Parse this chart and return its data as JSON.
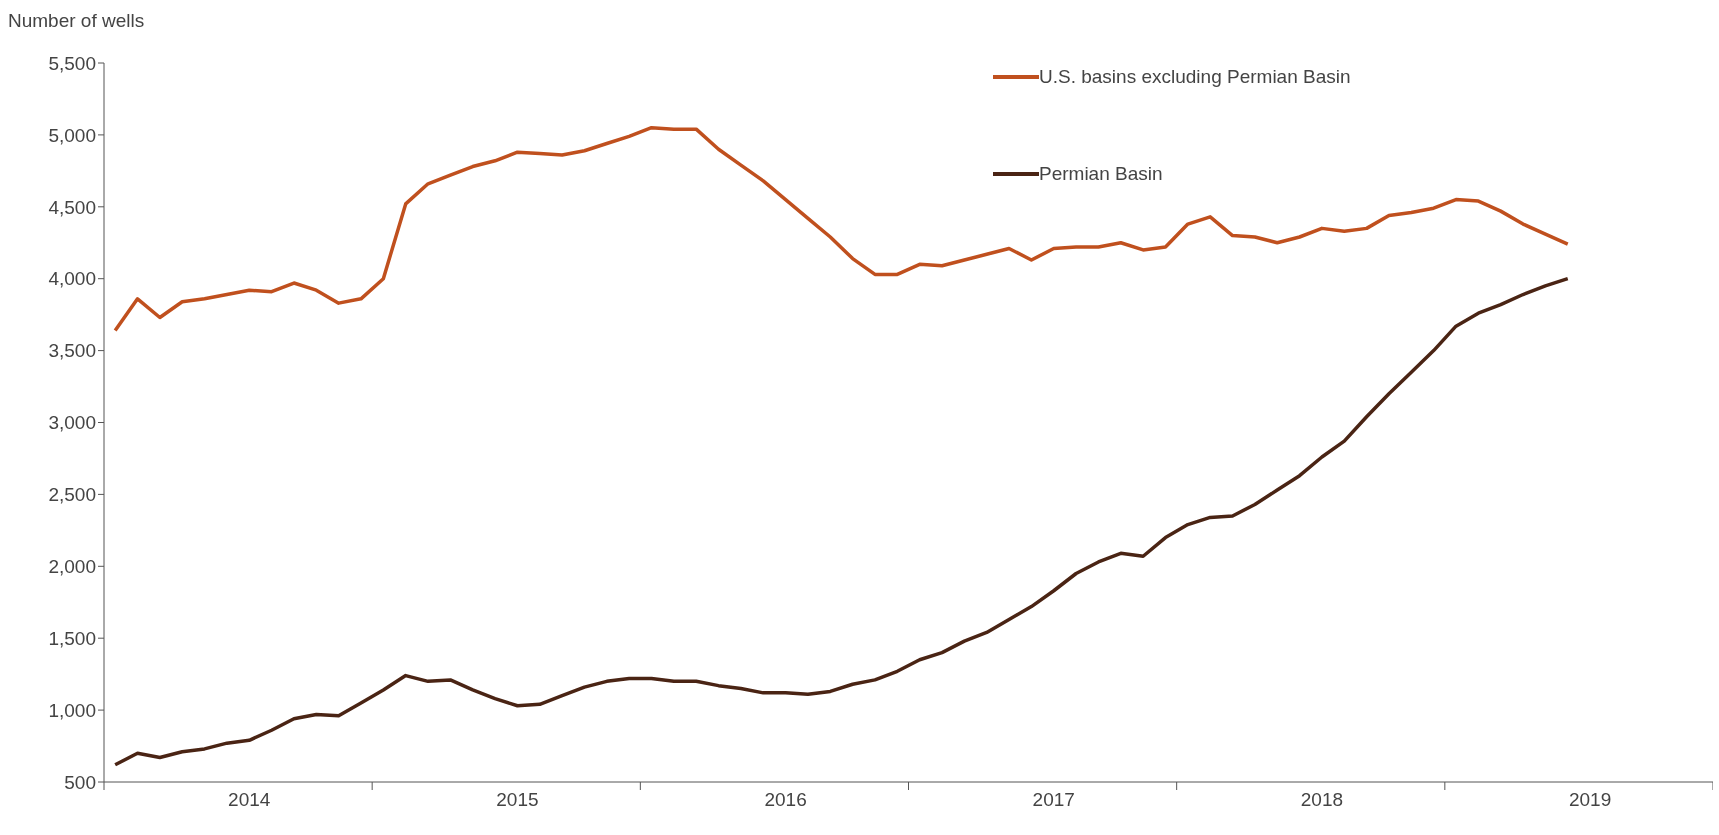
{
  "chart_data": {
    "type": "line",
    "ylabel": "Number of wells",
    "categories": [
      null,
      null,
      null,
      null,
      null,
      null,
      "2014",
      null,
      null,
      null,
      null,
      null,
      null,
      null,
      null,
      null,
      null,
      null,
      "2015",
      null,
      null,
      null,
      null,
      null,
      null,
      null,
      null,
      null,
      null,
      null,
      "2016",
      null,
      null,
      null,
      null,
      null,
      null,
      null,
      null,
      null,
      null,
      null,
      "2017",
      null,
      null,
      null,
      null,
      null,
      null,
      null,
      null,
      null,
      null,
      null,
      "2018",
      null,
      null,
      null,
      null,
      null,
      null,
      null,
      null,
      null,
      null,
      null,
      "2019",
      null,
      null,
      null,
      null,
      null
    ],
    "series": [
      {
        "name": "U.S. basins excluding Permian Basin",
        "color": "#c0501e",
        "values": [
          3640,
          3860,
          3730,
          3840,
          3860,
          3890,
          3920,
          3910,
          3970,
          3920,
          3830,
          3860,
          4000,
          4520,
          4660,
          4720,
          4780,
          4820,
          4880,
          4870,
          4860,
          4890,
          4940,
          4990,
          5050,
          5040,
          5040,
          4900,
          4790,
          4680,
          4550,
          4420,
          4290,
          4140,
          4030,
          4030,
          4100,
          4090,
          4130,
          4170,
          4210,
          4130,
          4210,
          4220,
          4220,
          4250,
          4200,
          4220,
          4380,
          4430,
          4300,
          4290,
          4250,
          4290,
          4350,
          4330,
          4350,
          4440,
          4460,
          4490,
          4550,
          4540,
          4470,
          4380,
          4310,
          4240,
          null,
          null,
          null,
          null,
          null,
          null
        ]
      },
      {
        "name": "Permian Basin",
        "color": "#4a2414",
        "values": [
          620,
          700,
          670,
          710,
          730,
          770,
          790,
          860,
          940,
          970,
          960,
          1050,
          1140,
          1240,
          1200,
          1210,
          1140,
          1080,
          1030,
          1040,
          1100,
          1160,
          1200,
          1220,
          1220,
          1200,
          1200,
          1170,
          1150,
          1120,
          1120,
          1110,
          1130,
          1180,
          1210,
          1270,
          1350,
          1400,
          1480,
          1540,
          1630,
          1720,
          1830,
          1950,
          2030,
          2090,
          2070,
          2200,
          2290,
          2340,
          2350,
          2430,
          2530,
          2630,
          2760,
          2870,
          3040,
          3200,
          3350,
          3500,
          3670,
          3760,
          3820,
          3890,
          3950,
          4000,
          null,
          null,
          null,
          null,
          null,
          null
        ]
      }
    ],
    "ylim": [
      500,
      5500
    ],
    "yticks": [
      {
        "value": 500,
        "label": "500"
      },
      {
        "value": 1000,
        "label": "1,000"
      },
      {
        "value": 1500,
        "label": "1,500"
      },
      {
        "value": 2000,
        "label": "2,000"
      },
      {
        "value": 2500,
        "label": "2,500"
      },
      {
        "value": 3000,
        "label": "3,000"
      },
      {
        "value": 3500,
        "label": "3,500"
      },
      {
        "value": 4000,
        "label": "4,000"
      },
      {
        "value": 4500,
        "label": "4,500"
      },
      {
        "value": 5000,
        "label": "5,000"
      },
      {
        "value": 5500,
        "label": "5,500"
      }
    ],
    "grid": false,
    "legend": "top right",
    "line_style": "solid",
    "marker": "none"
  }
}
